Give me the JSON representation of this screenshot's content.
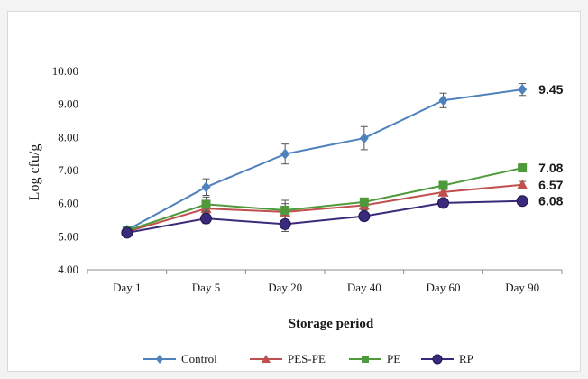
{
  "chart_data": {
    "type": "line",
    "xlabel": "Storage period",
    "ylabel": "Log cfu/g",
    "categories": [
      "Day 1",
      "Day 5",
      "Day 20",
      "Day 40",
      "Day 60",
      "Day 90"
    ],
    "ylim": [
      4.0,
      10.0
    ],
    "yticks": [
      "4.00",
      "5.00",
      "6.00",
      "7.00",
      "8.00",
      "9.00",
      "10.00"
    ],
    "grid": false,
    "legend_position": "bottom",
    "series": [
      {
        "name": "Control",
        "color": "#4f81bd",
        "marker": "diamond",
        "values": [
          5.2,
          6.5,
          7.5,
          7.98,
          9.12,
          9.45
        ],
        "errors": [
          0.1,
          0.25,
          0.3,
          0.35,
          0.22,
          0.18
        ],
        "end_label": "9.45"
      },
      {
        "name": "PES-PE",
        "color": "#c0504d",
        "marker": "triangle",
        "values": [
          5.15,
          5.85,
          5.75,
          5.95,
          6.35,
          6.57
        ],
        "errors": [
          0.1,
          0.2,
          0.25,
          0.15,
          0.1,
          0.1
        ],
        "end_label": "6.57"
      },
      {
        "name": "PE",
        "color": "#4e9a3a",
        "marker": "square",
        "values": [
          5.18,
          5.98,
          5.8,
          6.05,
          6.55,
          7.08
        ],
        "errors": [
          0.1,
          0.22,
          0.3,
          0.12,
          0.1,
          0.1
        ],
        "end_label": "7.08"
      },
      {
        "name": "RP",
        "color": "#3b2a7a",
        "marker": "circle",
        "values": [
          5.12,
          5.55,
          5.38,
          5.62,
          6.02,
          6.08
        ],
        "errors": [
          0.1,
          0.15,
          0.22,
          0.1,
          0.08,
          0.08
        ],
        "end_label": "6.08"
      }
    ]
  }
}
